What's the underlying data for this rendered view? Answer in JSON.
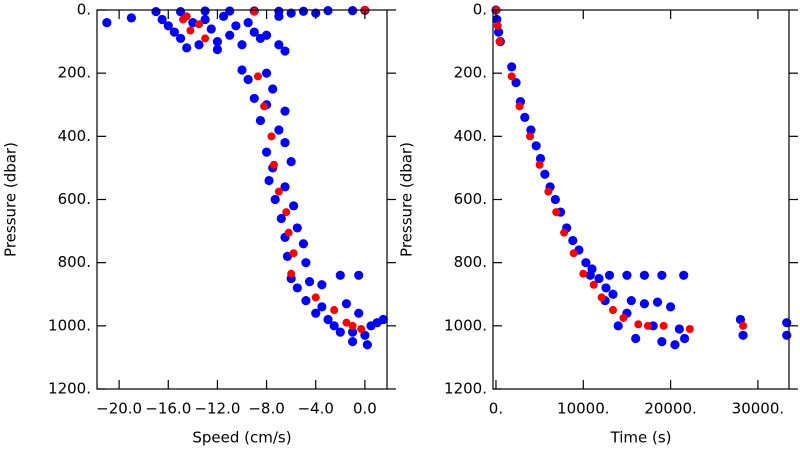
{
  "chart_data": [
    {
      "type": "scatter",
      "xlabel": "Speed (cm/s)",
      "ylabel": "Pressure (dbar)",
      "xlim": [
        -21.8,
        1.8
      ],
      "ylim": [
        1200,
        0
      ],
      "xticks": [
        {
          "value": -20,
          "label": "−20.0"
        },
        {
          "value": -16,
          "label": "−16.0"
        },
        {
          "value": -12,
          "label": "−12.0"
        },
        {
          "value": -8,
          "label": "−8.0"
        },
        {
          "value": -4,
          "label": "−4.0"
        },
        {
          "value": 0,
          "label": "0.0"
        }
      ],
      "yticks": [
        {
          "value": 0,
          "label": "0."
        },
        {
          "value": 200,
          "label": "200."
        },
        {
          "value": 400,
          "label": "400."
        },
        {
          "value": 600,
          "label": "600."
        },
        {
          "value": 800,
          "label": "800."
        },
        {
          "value": 1000,
          "label": "1000."
        },
        {
          "value": 1200,
          "label": "1200."
        }
      ],
      "series": [
        {
          "color": "#0000ff",
          "x": [
            -21,
            -19,
            -17,
            -15,
            -13,
            -11,
            -9,
            -7,
            -5,
            -3,
            -1,
            0,
            -16.5,
            -16,
            -15.5,
            -15,
            -14,
            -13.5,
            -13,
            -12.5,
            -12,
            -11.5,
            -11,
            -10.5,
            -10,
            -9.5,
            -9,
            -8.5,
            -12,
            -14.5,
            -7,
            -6,
            -4,
            -8,
            -7,
            -6.5,
            -10,
            -9.5,
            -8,
            -7.5,
            -9,
            -8,
            -6.5,
            -8.5,
            -7,
            -6.5,
            -8,
            -7.5,
            -6,
            -7.8,
            -6.5,
            -7.3,
            -5.8,
            -6.8,
            -5.5,
            -6.5,
            -5,
            -6.3,
            -4.8,
            -6,
            -4.5,
            -5.5,
            -3.5,
            -2,
            -0.5,
            -4.8,
            -3.5,
            -3,
            -2,
            -1,
            0,
            0.5,
            1,
            1.5,
            -0.5,
            -1.5,
            -2.5,
            -4,
            -1,
            0.2
          ],
          "values": [
            40,
            25,
            5,
            5,
            3,
            3,
            3,
            4,
            4,
            2,
            2,
            1,
            30,
            50,
            70,
            90,
            40,
            110,
            30,
            60,
            100,
            20,
            80,
            50,
            110,
            40,
            70,
            90,
            125,
            120,
            20,
            10,
            10,
            80,
            110,
            130,
            190,
            220,
            200,
            250,
            280,
            300,
            320,
            350,
            380,
            420,
            450,
            500,
            480,
            540,
            560,
            600,
            620,
            660,
            690,
            720,
            740,
            780,
            800,
            850,
            860,
            880,
            870,
            840,
            840,
            920,
            940,
            980,
            1020,
            1050,
            1030,
            1000,
            990,
            980,
            960,
            930,
            1000,
            960,
            1020,
            1060
          ]
        },
        {
          "color": "#ff0000",
          "x": [
            0,
            -9,
            -14.5,
            -14.8,
            -13.5,
            -14.2,
            -13,
            -8.7,
            -8.2,
            -7.6,
            -7.4,
            -7,
            -6.4,
            -6.2,
            -5.8,
            -6,
            -4,
            -2.5,
            -1.5,
            -1,
            -0.3
          ],
          "values": [
            0,
            5,
            20,
            30,
            45,
            65,
            90,
            210,
            305,
            400,
            490,
            575,
            640,
            705,
            770,
            835,
            910,
            950,
            990,
            1000,
            1010
          ]
        }
      ]
    },
    {
      "type": "scatter",
      "xlabel": "Time (s)",
      "ylabel": "Pressure (dbar)",
      "xlim": [
        -340,
        33560
      ],
      "ylim": [
        1200,
        0
      ],
      "xticks": [
        {
          "value": 0,
          "label": "0."
        },
        {
          "value": 10000,
          "label": "10000."
        },
        {
          "value": 20000,
          "label": "20000."
        },
        {
          "value": 30000,
          "label": "30000."
        }
      ],
      "yticks": [
        {
          "value": 0,
          "label": "0."
        },
        {
          "value": 200,
          "label": "200."
        },
        {
          "value": 400,
          "label": "400."
        },
        {
          "value": 600,
          "label": "600."
        },
        {
          "value": 800,
          "label": "800."
        },
        {
          "value": 1000,
          "label": "1000."
        },
        {
          "value": 1200,
          "label": "1200."
        }
      ],
      "series": [
        {
          "color": "#0000ff",
          "x": [
            0,
            100,
            300,
            500,
            1800,
            2300,
            2800,
            3300,
            4000,
            4600,
            5100,
            5600,
            6200,
            6800,
            7400,
            8100,
            8800,
            9500,
            10300,
            11000,
            11800,
            12600,
            13400,
            10800,
            13000,
            15000,
            17000,
            19000,
            21500,
            12500,
            14000,
            15000,
            16000,
            17000,
            18000,
            19000,
            20000,
            21000,
            21600,
            15500,
            18500,
            20500,
            28000,
            28300,
            33300,
            33300
          ],
          "values": [
            0,
            30,
            70,
            100,
            180,
            230,
            290,
            340,
            380,
            430,
            470,
            520,
            560,
            600,
            640,
            690,
            730,
            760,
            800,
            820,
            850,
            880,
            900,
            840,
            840,
            840,
            840,
            840,
            840,
            920,
            1000,
            960,
            1040,
            930,
            1000,
            1050,
            940,
            1010,
            1040,
            920,
            925,
            1060,
            980,
            1030,
            990,
            1030
          ]
        },
        {
          "color": "#ff0000",
          "x": [
            50,
            200,
            400,
            1800,
            2700,
            3900,
            5000,
            6000,
            6900,
            7800,
            8900,
            10000,
            11200,
            12100,
            13400,
            14600,
            16300,
            17400,
            19200,
            22200,
            28300
          ],
          "values": [
            0,
            50,
            100,
            210,
            305,
            400,
            490,
            575,
            640,
            705,
            770,
            835,
            870,
            910,
            950,
            975,
            995,
            1000,
            1000,
            1010,
            1000
          ]
        }
      ]
    }
  ]
}
